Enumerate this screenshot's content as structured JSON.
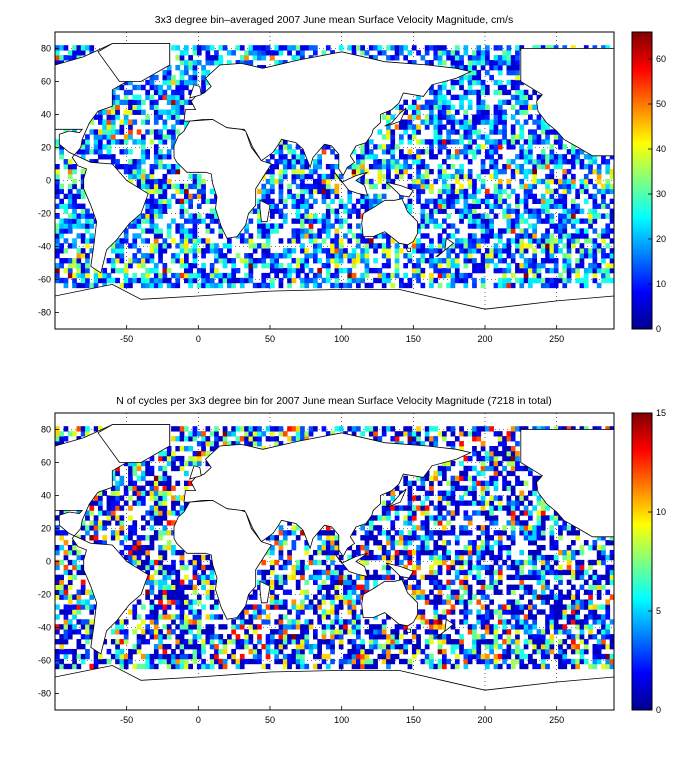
{
  "chart_data": [
    {
      "type": "heatmap",
      "title": "3x3 degree bin–averaged 2007 June mean Surface Velocity Magnitude, cm/s",
      "xlabel": "",
      "ylabel": "",
      "xlim": [
        -100,
        290
      ],
      "ylim": [
        -90,
        90
      ],
      "xticks": [
        "-50",
        "0",
        "50",
        "100",
        "150",
        "200",
        "250"
      ],
      "yticks": [
        "80",
        "60",
        "40",
        "20",
        "0",
        "-20",
        "-40",
        "-60",
        "-80"
      ],
      "grid": true,
      "colorbar": {
        "range": [
          0,
          66
        ],
        "ticks": [
          "0",
          "10",
          "20",
          "30",
          "40",
          "50",
          "60"
        ],
        "colormap": "jet"
      },
      "bin_size_deg": 3,
      "value_mode": "velocity",
      "valid_lat_range": [
        -65,
        80
      ]
    },
    {
      "type": "heatmap",
      "title": "N of cycles per 3x3 degree bin for 2007 June mean Surface Velocity Magnitude (7218 in total)",
      "xlabel": "",
      "ylabel": "",
      "xlim": [
        -100,
        290
      ],
      "ylim": [
        -90,
        90
      ],
      "xticks": [
        "-50",
        "0",
        "50",
        "100",
        "150",
        "200",
        "250"
      ],
      "yticks": [
        "80",
        "60",
        "40",
        "20",
        "0",
        "-20",
        "-40",
        "-60",
        "-80"
      ],
      "grid": true,
      "colorbar": {
        "range": [
          0,
          15
        ],
        "ticks": [
          "0",
          "5",
          "10",
          "15"
        ],
        "colormap": "jet"
      },
      "bin_size_deg": 3,
      "value_mode": "count",
      "total_cycles": 7218,
      "valid_lat_range": [
        -65,
        80
      ]
    }
  ]
}
